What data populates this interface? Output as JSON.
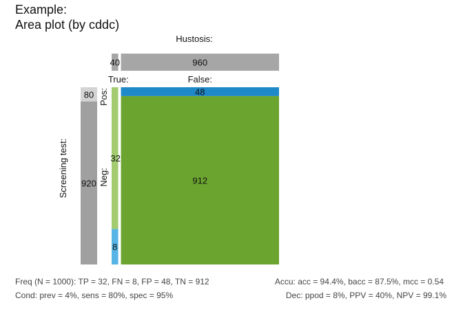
{
  "chart_data": {
    "type": "area",
    "title": "Example:",
    "subtitle": "Area plot (by cddc)",
    "col_axis_label": "Hustosis:",
    "row_axis_label": "Screening test:",
    "labels": {
      "cond_true": "True:",
      "cond_false": "False:",
      "dec_pos": "Pos:",
      "dec_neg": "Neg:"
    },
    "N": 1000,
    "cond_true": 40,
    "cond_false": 960,
    "dec_pos": 80,
    "dec_neg": 920,
    "TP": 32,
    "FN": 8,
    "FP": 48,
    "TN": 912,
    "colors": {
      "condition_bar": "#a6a6a6",
      "decision_bar": "#a0a0a0",
      "TP": "#a2cc6f",
      "FN": "#56b5e6",
      "FP": "#1f88c8",
      "TN": "#6ba52f"
    },
    "footer": {
      "line1_left": "Freq (N = 1000):  TP = 32, FN = 8, FP = 48, TN = 912",
      "line1_right": "Accu:  acc = 94.4%, bacc = 87.5%, mcc = 0.54",
      "line2_left": "Cond:  prev = 4%, sens = 80%, spec = 95%",
      "line2_right": "Dec:  ppod = 8%, PPV = 40%, NPV = 99.1%"
    }
  }
}
